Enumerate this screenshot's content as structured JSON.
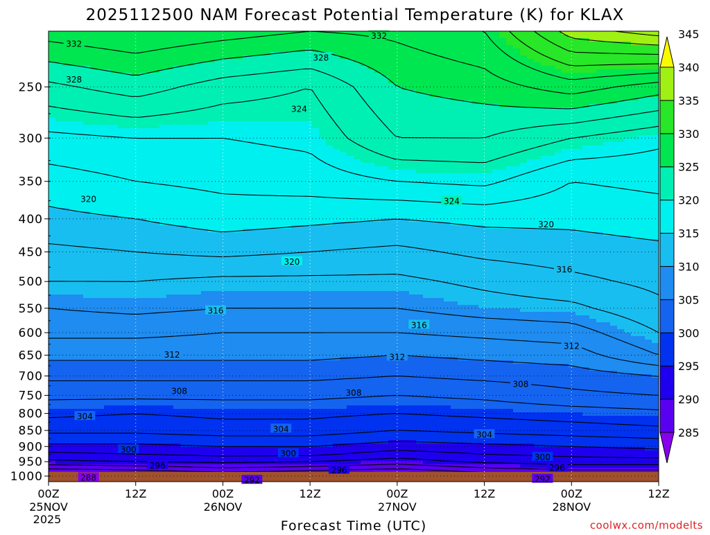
{
  "chart_data": {
    "type": "contour",
    "title": "2025112500 NAM Forecast Potential Temperature (K) for KLAX",
    "xlabel": "Forecast Time (UTC)",
    "ylabel": "",
    "credit": "coolwx.com/modelts",
    "x_unit": "forecast hour",
    "xlim": [
      0,
      84
    ],
    "ylim": [
      1020,
      205
    ],
    "y_scale": "log-pressure",
    "x_ticks": [
      {
        "value": 0,
        "label": "00Z",
        "sub": "25NOV",
        "year": "2025"
      },
      {
        "value": 12,
        "label": "12Z"
      },
      {
        "value": 24,
        "label": "00Z",
        "sub": "26NOV"
      },
      {
        "value": 36,
        "label": "12Z"
      },
      {
        "value": 48,
        "label": "00Z",
        "sub": "27NOV"
      },
      {
        "value": 60,
        "label": "12Z"
      },
      {
        "value": 72,
        "label": "00Z",
        "sub": "28NOV"
      },
      {
        "value": 84,
        "label": "12Z"
      }
    ],
    "y_ticks": [
      250,
      300,
      350,
      400,
      450,
      500,
      550,
      600,
      650,
      700,
      750,
      800,
      850,
      900,
      950,
      1000
    ],
    "y_tick_labels": [
      "250",
      "300",
      "350",
      "400",
      "450",
      "500",
      "550",
      "600",
      "650",
      "700",
      "750",
      "800",
      "850",
      "900",
      "950",
      "1000"
    ],
    "grid": true,
    "colorbar": {
      "levels": [
        285,
        290,
        295,
        300,
        305,
        310,
        315,
        320,
        325,
        330,
        335,
        340,
        345
      ],
      "labels": [
        "285",
        "290",
        "295",
        "300",
        "305",
        "310",
        "315",
        "320",
        "325",
        "330",
        "335",
        "340",
        "345"
      ],
      "colors": [
        "#8800ee",
        "#5a00f0",
        "#1e00ee",
        "#0032f0",
        "#1464f0",
        "#1e8cf0",
        "#19bef0",
        "#00f0f0",
        "#00f0b4",
        "#00e650",
        "#28e628",
        "#a0f014",
        "#fafa00"
      ]
    },
    "ground_color": "#a0522d",
    "contour_levels": [
      288,
      290,
      292,
      294,
      296,
      298,
      300,
      302,
      304,
      306,
      308,
      310,
      312,
      314,
      316,
      318,
      320,
      322,
      324,
      326,
      328,
      330,
      332,
      334,
      336,
      338,
      340,
      342,
      344
    ],
    "contour_label_texts": [
      "332",
      "328",
      "324",
      "320",
      "316",
      "312",
      "308",
      "304",
      "300",
      "296",
      "292",
      "288"
    ],
    "contour_labels": [
      {
        "t": 3.5,
        "p": 214,
        "text": "332"
      },
      {
        "t": 45.5,
        "p": 208,
        "text": "332"
      },
      {
        "t": 3.5,
        "p": 243,
        "text": "328"
      },
      {
        "t": 37.5,
        "p": 225,
        "text": "328"
      },
      {
        "t": 34.5,
        "p": 270,
        "text": "324"
      },
      {
        "t": 55.5,
        "p": 375,
        "text": "324"
      },
      {
        "t": 5.5,
        "p": 372,
        "text": "320"
      },
      {
        "t": 33.5,
        "p": 465,
        "text": "320"
      },
      {
        "t": 68.5,
        "p": 407,
        "text": "320"
      },
      {
        "t": 23,
        "p": 554,
        "text": "316"
      },
      {
        "t": 51,
        "p": 583,
        "text": "316"
      },
      {
        "t": 71,
        "p": 478,
        "text": "316"
      },
      {
        "t": 17,
        "p": 648,
        "text": "312"
      },
      {
        "t": 48,
        "p": 653,
        "text": "312"
      },
      {
        "t": 72,
        "p": 628,
        "text": "312"
      },
      {
        "t": 18,
        "p": 737,
        "text": "308"
      },
      {
        "t": 42,
        "p": 742,
        "text": "308"
      },
      {
        "t": 65,
        "p": 719,
        "text": "308"
      },
      {
        "t": 5,
        "p": 807,
        "text": "304"
      },
      {
        "t": 32,
        "p": 844,
        "text": "304"
      },
      {
        "t": 60,
        "p": 861,
        "text": "304"
      },
      {
        "t": 11,
        "p": 908,
        "text": "300"
      },
      {
        "t": 33,
        "p": 921,
        "text": "300"
      },
      {
        "t": 68,
        "p": 933,
        "text": "300"
      },
      {
        "t": 15,
        "p": 961,
        "text": "296"
      },
      {
        "t": 40,
        "p": 977,
        "text": "296"
      },
      {
        "t": 70,
        "p": 968,
        "text": "296"
      },
      {
        "t": 28,
        "p": 1013,
        "text": "292"
      },
      {
        "t": 68,
        "p": 1009,
        "text": "292"
      },
      {
        "t": 5.5,
        "p": 1004,
        "text": "288"
      }
    ],
    "theta_profile": {
      "pressures": [
        1020,
        1000,
        975,
        950,
        925,
        900,
        875,
        850,
        800,
        750,
        700,
        650,
        600,
        550,
        500,
        450,
        400,
        350,
        300,
        250,
        205
      ],
      "times": [
        0,
        12,
        24,
        36,
        48,
        60,
        72,
        84
      ],
      "values": [
        [
          287.5,
          288.0,
          289.0,
          288.0,
          287.0,
          289.5,
          290.5,
          290.0
        ],
        [
          288.0,
          289.0,
          290.0,
          289.0,
          288.0,
          290.5,
          291.0,
          291.0
        ],
        [
          292.0,
          292.5,
          293.5,
          293.0,
          292.0,
          293.5,
          294.5,
          294.5
        ],
        [
          295.5,
          296.0,
          296.5,
          296.0,
          295.0,
          296.5,
          297.0,
          297.0
        ],
        [
          297.5,
          298.0,
          298.5,
          298.5,
          297.0,
          298.0,
          298.5,
          299.0
        ],
        [
          299.5,
          299.5,
          300.0,
          300.0,
          299.0,
          299.5,
          300.0,
          300.5
        ],
        [
          301.0,
          301.0,
          301.5,
          301.5,
          300.5,
          301.0,
          301.5,
          302.0
        ],
        [
          302.5,
          302.5,
          303.0,
          303.0,
          302.0,
          302.5,
          303.0,
          303.5
        ],
        [
          304.5,
          304.0,
          304.5,
          304.5,
          304.0,
          304.5,
          305.0,
          305.5
        ],
        [
          306.5,
          306.5,
          306.5,
          306.5,
          306.0,
          306.5,
          307.5,
          308.0
        ],
        [
          308.5,
          308.5,
          308.5,
          308.5,
          308.0,
          308.5,
          309.0,
          310.0
        ],
        [
          310.5,
          310.5,
          310.5,
          310.5,
          310.0,
          310.5,
          311.0,
          314.0
        ],
        [
          312.5,
          312.5,
          312.0,
          312.0,
          312.0,
          312.5,
          313.0,
          316.0
        ],
        [
          314.0,
          314.5,
          314.0,
          314.0,
          314.0,
          315.0,
          315.5,
          317.5
        ],
        [
          316.0,
          316.0,
          315.5,
          315.5,
          315.5,
          316.5,
          317.5,
          318.5
        ],
        [
          317.5,
          318.0,
          318.5,
          318.0,
          317.5,
          318.5,
          319.0,
          319.5
        ],
        [
          319.5,
          320.0,
          321.0,
          320.5,
          320.0,
          320.5,
          320.5,
          321.0
        ],
        [
          321.0,
          322.0,
          322.5,
          323.0,
          324.0,
          324.5,
          322.0,
          322.5
        ],
        [
          323.5,
          324.0,
          324.0,
          324.5,
          328.0,
          328.0,
          326.0,
          324.5
        ],
        [
          327.5,
          329.0,
          327.0,
          326.0,
          330.0,
          331.0,
          333.0,
          331.0
        ],
        [
          333.0,
          334.0,
          333.0,
          332.0,
          332.5,
          334.0,
          341.0,
          343.0
        ]
      ]
    }
  }
}
